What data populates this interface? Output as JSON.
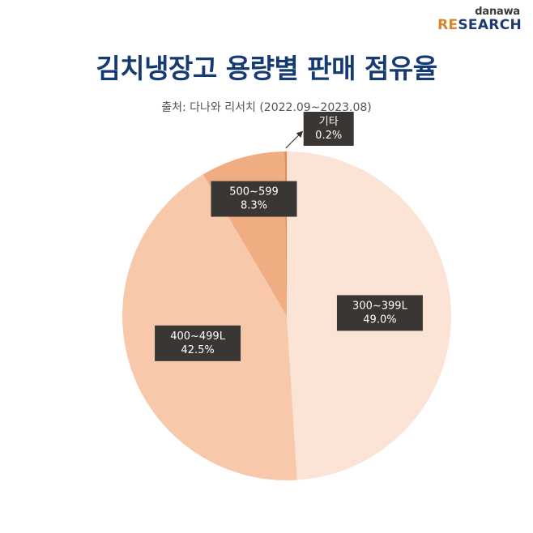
{
  "logo": {
    "top": "danawa",
    "re": "RE",
    "rest": "SEARCH"
  },
  "title": "김치냉장고 용량별 판매 점유율",
  "source": "출처: 다나와 리서치 (2022.09~2023.08)",
  "chart_data": {
    "type": "pie",
    "categories": [
      "300~399L",
      "400~499L",
      "500~599",
      "기타"
    ],
    "values": [
      49.0,
      42.5,
      8.3,
      0.2
    ],
    "value_labels": [
      "49.0%",
      "42.5%",
      "8.3%",
      "0.2%"
    ],
    "colors": [
      "#fbe3d5",
      "#f7c9aa",
      "#f1ad82",
      "#e48a57"
    ],
    "start_angle_deg": 0,
    "direction": "clockwise",
    "legend": "none"
  }
}
